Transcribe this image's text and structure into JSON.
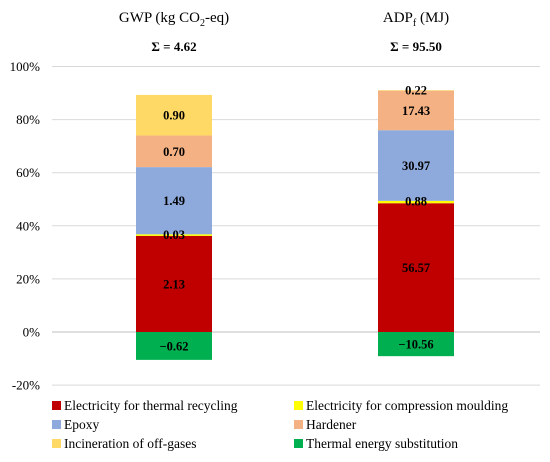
{
  "chart_data": {
    "type": "bar",
    "stacked": true,
    "ylim": [
      -20,
      100
    ],
    "yticks": [
      -20,
      0,
      20,
      40,
      60,
      80,
      100
    ],
    "grid": true,
    "legend_position": "bottom",
    "categories": [
      {
        "title_main": "GWP  (kg CO",
        "title_sub": "2",
        "title_tail": "-eq)",
        "total_label": "Σ = 4.62"
      },
      {
        "title_main": "ADP",
        "title_sub": "f",
        "title_tail": " (MJ)",
        "total_label": "Σ = 95.50"
      }
    ],
    "series": [
      {
        "name": "Electricity for thermal recycling",
        "color": "#C00000",
        "percent": [
          36.2,
          48.5
        ],
        "labels": [
          "2.13",
          "56.57"
        ]
      },
      {
        "name": "Electricity for compression moulding",
        "color": "#FFFF00",
        "percent": [
          0.6,
          0.9
        ],
        "labels": [
          "0.03",
          "0.88"
        ]
      },
      {
        "name": "Epoxy",
        "color": "#8EA9DB",
        "percent": [
          25.3,
          26.6
        ],
        "labels": [
          "1.49",
          "30.97"
        ]
      },
      {
        "name": "Hardener",
        "color": "#F4B183",
        "percent": [
          11.9,
          14.9
        ],
        "labels": [
          "0.70",
          "17.43"
        ]
      },
      {
        "name": "Incineration of off-gases",
        "color": "#FFD966",
        "percent": [
          15.3,
          0.2
        ],
        "labels": [
          "0.90",
          "0.22"
        ]
      },
      {
        "name": "Thermal energy substitution",
        "color": "#00B050",
        "percent": [
          -10.5,
          -9.1
        ],
        "labels": [
          "−0.62",
          "−10.56"
        ]
      }
    ]
  }
}
